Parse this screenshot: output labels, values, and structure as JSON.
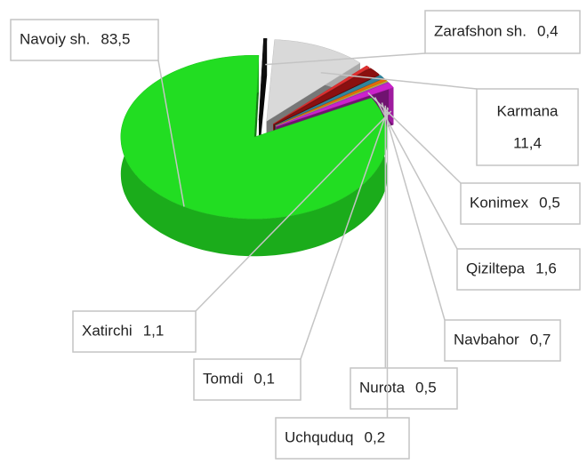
{
  "chart_data": {
    "type": "pie3d",
    "categories": [
      "Navoiy sh.",
      "Zarafshon sh.",
      "Karmana",
      "Konimex",
      "Qiziltepa",
      "Navbahor",
      "Nurota",
      "Uchquduq",
      "Tomdi",
      "Xatirchi"
    ],
    "values": [
      83.5,
      0.4,
      11.4,
      0.5,
      1.6,
      0.7,
      0.5,
      0.2,
      0.1,
      1.1
    ],
    "value_labels": [
      "83,5",
      "0,4",
      "11,4",
      "0,5",
      "1,6",
      "0,7",
      "0,5",
      "0,2",
      "0,1",
      "1,1"
    ],
    "colors": [
      "#22dd22",
      "#111111",
      "#d9d9d9",
      "#e03030",
      "#8b1010",
      "#31849b",
      "#e26b0a",
      "#c8c020",
      "#b070c0",
      "#cc22cc"
    ]
  }
}
